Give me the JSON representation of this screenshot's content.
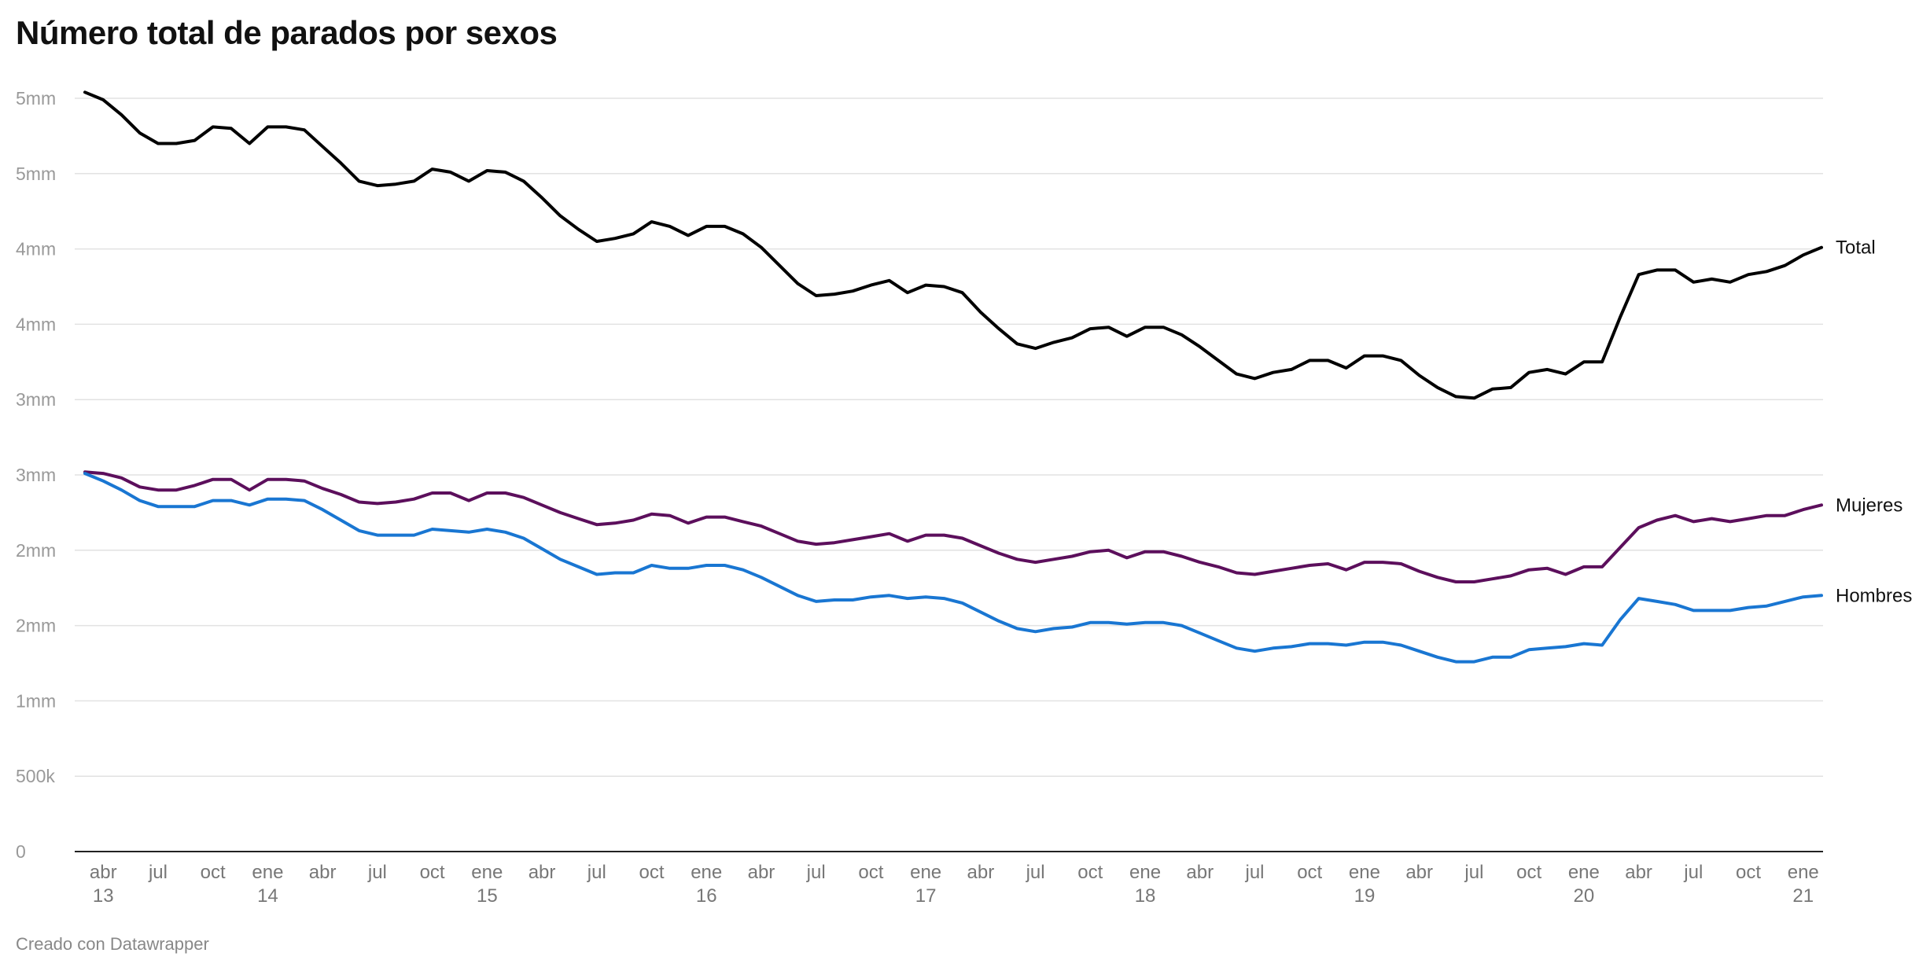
{
  "title": "Número total de parados por sexos",
  "footer": "Creado con Datawrapper",
  "chart_data": {
    "type": "line",
    "title": "Número total de parados por sexos",
    "xlabel": "",
    "ylabel": "",
    "ylim": [
      0,
      5000000
    ],
    "grid": true,
    "legend": "inline labels at line ends",
    "y_ticks": [
      {
        "value": 0,
        "label": "0"
      },
      {
        "value": 500000,
        "label": "500k"
      },
      {
        "value": 1000000,
        "label": "1mm"
      },
      {
        "value": 1500000,
        "label": "2mm"
      },
      {
        "value": 2000000,
        "label": "2mm"
      },
      {
        "value": 2500000,
        "label": "3mm"
      },
      {
        "value": 3000000,
        "label": "3mm"
      },
      {
        "value": 3500000,
        "label": "4mm"
      },
      {
        "value": 4000000,
        "label": "4mm"
      },
      {
        "value": 4500000,
        "label": "5mm"
      },
      {
        "value": 5000000,
        "label": "5mm"
      }
    ],
    "x_ticks": [
      {
        "value": "2013-04",
        "label": "abr",
        "sublabel": "13"
      },
      {
        "value": "2013-07",
        "label": "jul"
      },
      {
        "value": "2013-10",
        "label": "oct"
      },
      {
        "value": "2014-01",
        "label": "ene",
        "sublabel": "14"
      },
      {
        "value": "2014-04",
        "label": "abr"
      },
      {
        "value": "2014-07",
        "label": "jul"
      },
      {
        "value": "2014-10",
        "label": "oct"
      },
      {
        "value": "2015-01",
        "label": "ene",
        "sublabel": "15"
      },
      {
        "value": "2015-04",
        "label": "abr"
      },
      {
        "value": "2015-07",
        "label": "jul"
      },
      {
        "value": "2015-10",
        "label": "oct"
      },
      {
        "value": "2016-01",
        "label": "ene",
        "sublabel": "16"
      },
      {
        "value": "2016-04",
        "label": "abr"
      },
      {
        "value": "2016-07",
        "label": "jul"
      },
      {
        "value": "2016-10",
        "label": "oct"
      },
      {
        "value": "2017-01",
        "label": "ene",
        "sublabel": "17"
      },
      {
        "value": "2017-04",
        "label": "abr"
      },
      {
        "value": "2017-07",
        "label": "jul"
      },
      {
        "value": "2017-10",
        "label": "oct"
      },
      {
        "value": "2018-01",
        "label": "ene",
        "sublabel": "18"
      },
      {
        "value": "2018-04",
        "label": "abr"
      },
      {
        "value": "2018-07",
        "label": "jul"
      },
      {
        "value": "2018-10",
        "label": "oct"
      },
      {
        "value": "2019-01",
        "label": "ene",
        "sublabel": "19"
      },
      {
        "value": "2019-04",
        "label": "abr"
      },
      {
        "value": "2019-07",
        "label": "jul"
      },
      {
        "value": "2019-10",
        "label": "oct"
      },
      {
        "value": "2020-01",
        "label": "ene",
        "sublabel": "20"
      },
      {
        "value": "2020-04",
        "label": "abr"
      },
      {
        "value": "2020-07",
        "label": "jul"
      },
      {
        "value": "2020-10",
        "label": "oct"
      },
      {
        "value": "2021-01",
        "label": "ene",
        "sublabel": "21"
      }
    ],
    "x": [
      "2013-03",
      "2013-04",
      "2013-05",
      "2013-06",
      "2013-07",
      "2013-08",
      "2013-09",
      "2013-10",
      "2013-11",
      "2013-12",
      "2014-01",
      "2014-02",
      "2014-03",
      "2014-04",
      "2014-05",
      "2014-06",
      "2014-07",
      "2014-08",
      "2014-09",
      "2014-10",
      "2014-11",
      "2014-12",
      "2015-01",
      "2015-02",
      "2015-03",
      "2015-04",
      "2015-05",
      "2015-06",
      "2015-07",
      "2015-08",
      "2015-09",
      "2015-10",
      "2015-11",
      "2015-12",
      "2016-01",
      "2016-02",
      "2016-03",
      "2016-04",
      "2016-05",
      "2016-06",
      "2016-07",
      "2016-08",
      "2016-09",
      "2016-10",
      "2016-11",
      "2016-12",
      "2017-01",
      "2017-02",
      "2017-03",
      "2017-04",
      "2017-05",
      "2017-06",
      "2017-07",
      "2017-08",
      "2017-09",
      "2017-10",
      "2017-11",
      "2017-12",
      "2018-01",
      "2018-02",
      "2018-03",
      "2018-04",
      "2018-05",
      "2018-06",
      "2018-07",
      "2018-08",
      "2018-09",
      "2018-10",
      "2018-11",
      "2018-12",
      "2019-01",
      "2019-02",
      "2019-03",
      "2019-04",
      "2019-05",
      "2019-06",
      "2019-07",
      "2019-08",
      "2019-09",
      "2019-10",
      "2019-11",
      "2019-12",
      "2020-01",
      "2020-02",
      "2020-03",
      "2020-04",
      "2020-05",
      "2020-06",
      "2020-07",
      "2020-08",
      "2020-09",
      "2020-10",
      "2020-11",
      "2020-12",
      "2021-01",
      "2021-02"
    ],
    "series": [
      {
        "name": "Total",
        "color": "#000000",
        "values": [
          5040000,
          4990000,
          4890000,
          4770000,
          4700000,
          4700000,
          4720000,
          4810000,
          4800000,
          4700000,
          4810000,
          4810000,
          4790000,
          4680000,
          4570000,
          4450000,
          4420000,
          4430000,
          4450000,
          4530000,
          4510000,
          4450000,
          4520000,
          4510000,
          4450000,
          4340000,
          4220000,
          4130000,
          4050000,
          4070000,
          4100000,
          4180000,
          4150000,
          4090000,
          4150000,
          4150000,
          4100000,
          4010000,
          3890000,
          3770000,
          3690000,
          3700000,
          3720000,
          3760000,
          3790000,
          3710000,
          3760000,
          3750000,
          3710000,
          3580000,
          3470000,
          3370000,
          3340000,
          3380000,
          3410000,
          3470000,
          3480000,
          3420000,
          3480000,
          3480000,
          3430000,
          3350000,
          3260000,
          3170000,
          3140000,
          3180000,
          3200000,
          3260000,
          3260000,
          3210000,
          3290000,
          3290000,
          3260000,
          3160000,
          3080000,
          3020000,
          3010000,
          3070000,
          3080000,
          3180000,
          3200000,
          3170000,
          3250000,
          3250000,
          3550000,
          3830000,
          3860000,
          3860000,
          3780000,
          3800000,
          3780000,
          3830000,
          3850000,
          3890000,
          3960000,
          4010000
        ]
      },
      {
        "name": "Mujeres",
        "color": "#5c0f5c",
        "values": [
          2520000,
          2510000,
          2480000,
          2420000,
          2400000,
          2400000,
          2430000,
          2470000,
          2470000,
          2400000,
          2470000,
          2470000,
          2460000,
          2410000,
          2370000,
          2320000,
          2310000,
          2320000,
          2340000,
          2380000,
          2380000,
          2330000,
          2380000,
          2380000,
          2350000,
          2300000,
          2250000,
          2210000,
          2170000,
          2180000,
          2200000,
          2240000,
          2230000,
          2180000,
          2220000,
          2220000,
          2190000,
          2160000,
          2110000,
          2060000,
          2040000,
          2050000,
          2070000,
          2090000,
          2110000,
          2060000,
          2100000,
          2100000,
          2080000,
          2030000,
          1980000,
          1940000,
          1920000,
          1940000,
          1960000,
          1990000,
          2000000,
          1950000,
          1990000,
          1990000,
          1960000,
          1920000,
          1890000,
          1850000,
          1840000,
          1860000,
          1880000,
          1900000,
          1910000,
          1870000,
          1920000,
          1920000,
          1910000,
          1860000,
          1820000,
          1790000,
          1790000,
          1810000,
          1830000,
          1870000,
          1880000,
          1840000,
          1890000,
          1890000,
          2020000,
          2150000,
          2200000,
          2230000,
          2190000,
          2210000,
          2190000,
          2210000,
          2230000,
          2230000,
          2270000,
          2300000
        ]
      },
      {
        "name": "Hombres",
        "color": "#1976d2",
        "values": [
          2510000,
          2460000,
          2400000,
          2330000,
          2290000,
          2290000,
          2290000,
          2330000,
          2330000,
          2300000,
          2340000,
          2340000,
          2330000,
          2270000,
          2200000,
          2130000,
          2100000,
          2100000,
          2100000,
          2140000,
          2130000,
          2120000,
          2140000,
          2120000,
          2080000,
          2010000,
          1940000,
          1890000,
          1840000,
          1850000,
          1850000,
          1900000,
          1880000,
          1880000,
          1900000,
          1900000,
          1870000,
          1820000,
          1760000,
          1700000,
          1660000,
          1670000,
          1670000,
          1690000,
          1700000,
          1680000,
          1690000,
          1680000,
          1650000,
          1590000,
          1530000,
          1480000,
          1460000,
          1480000,
          1490000,
          1520000,
          1520000,
          1510000,
          1520000,
          1520000,
          1500000,
          1450000,
          1400000,
          1350000,
          1330000,
          1350000,
          1360000,
          1380000,
          1380000,
          1370000,
          1390000,
          1390000,
          1370000,
          1330000,
          1290000,
          1260000,
          1260000,
          1290000,
          1290000,
          1340000,
          1350000,
          1360000,
          1380000,
          1370000,
          1540000,
          1680000,
          1660000,
          1640000,
          1600000,
          1600000,
          1600000,
          1620000,
          1630000,
          1660000,
          1690000,
          1700000
        ]
      }
    ]
  }
}
